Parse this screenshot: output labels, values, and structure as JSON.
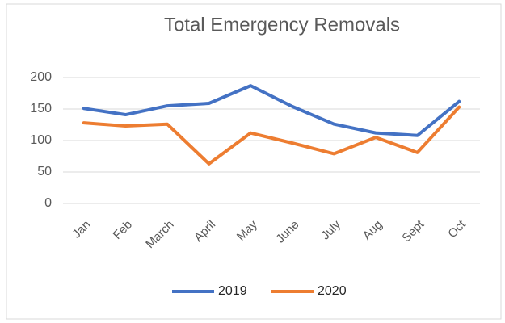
{
  "chart_data": {
    "type": "line",
    "title": "Total Emergency Removals",
    "categories": [
      "Jan",
      "Feb",
      "March",
      "April",
      "May",
      "June",
      "July",
      "Aug",
      "Sept",
      "Oct"
    ],
    "series": [
      {
        "name": "2019",
        "color": "#4472c4",
        "values": [
          151,
          141,
          155,
          159,
          187,
          154,
          126,
          112,
          108,
          162
        ]
      },
      {
        "name": "2020",
        "color": "#ed7d31",
        "values": [
          128,
          123,
          126,
          63,
          112,
          96,
          79,
          105,
          81,
          153
        ]
      }
    ],
    "ylim": [
      0,
      200
    ],
    "yticks": [
      0,
      50,
      100,
      150,
      200
    ],
    "grid": true,
    "legend": "bottom"
  }
}
